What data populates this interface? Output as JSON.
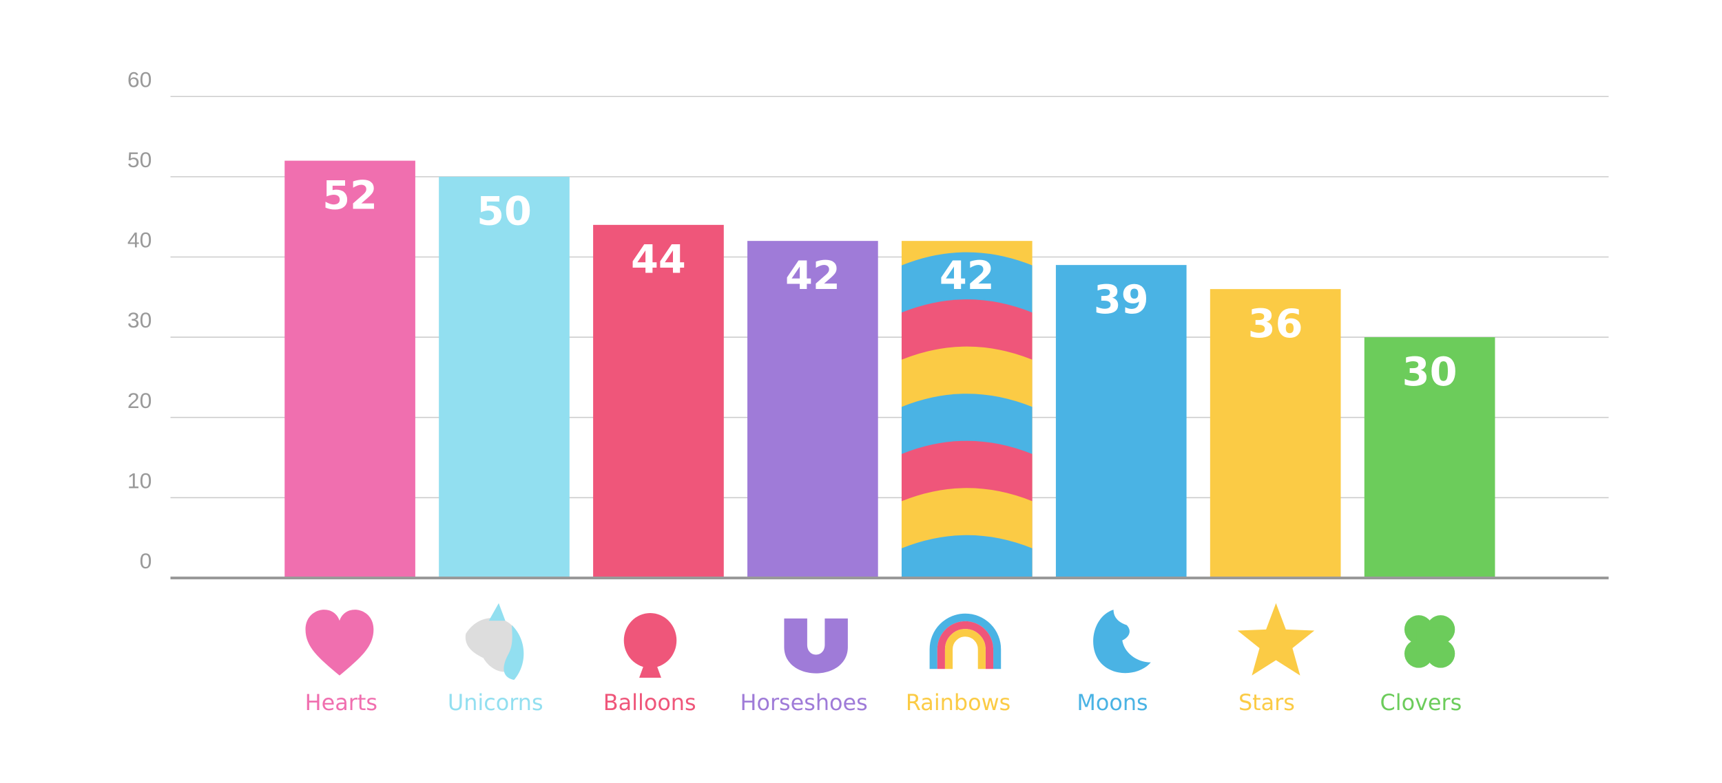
{
  "chart_data": {
    "type": "bar",
    "categories": [
      "Hearts",
      "Unicorns",
      "Balloons",
      "Horseshoes",
      "Rainbows",
      "Moons",
      "Stars",
      "Clovers"
    ],
    "values": [
      52,
      50,
      44,
      42,
      42,
      39,
      36,
      30
    ],
    "colors": [
      "#f06faf",
      "#92dff0",
      "#ef567a",
      "#9f7bd8",
      "#fbcb45",
      "#4ab3e4",
      "#fbcb45",
      "#6ccc5b"
    ],
    "ylim": [
      0,
      60
    ],
    "yticks": [
      0,
      10,
      20,
      30,
      40,
      50,
      60
    ],
    "grid": true
  }
}
